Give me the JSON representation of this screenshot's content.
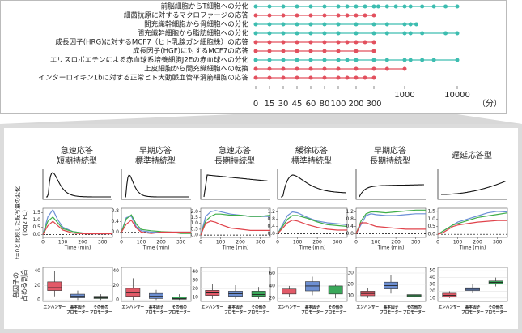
{
  "chart_data": [
    {
      "type": "dot-timeline",
      "xlabel": "（分）",
      "xticks": [
        0,
        15,
        30,
        45,
        60,
        80,
        100,
        200,
        300,
        1000,
        10000
      ],
      "series": [
        {
          "name": "前脳細胞からT細胞への分化",
          "color": "#3dbdb0",
          "values": [
            0,
            15,
            30,
            45,
            60,
            80,
            100,
            150,
            200,
            250,
            300,
            400,
            600,
            800,
            1000,
            2000,
            4000,
            6000,
            8000,
            10000
          ]
        },
        {
          "name": "細菌抗原に対するマクロファージの応答",
          "color": "#e2505e",
          "values": [
            0,
            15,
            30,
            45,
            60,
            80,
            100,
            150,
            200,
            250,
            300
          ]
        },
        {
          "name": "間充織幹細胞から骨細胞への分化",
          "color": "#3dbdb0",
          "values": [
            0,
            15,
            30,
            45,
            60,
            80,
            100,
            200,
            300,
            600,
            1000,
            2000,
            3000
          ]
        },
        {
          "name": "間充織幹細胞から脂肪細胞への分化",
          "color": "#3dbdb0",
          "values": [
            0,
            15,
            30,
            45,
            60,
            80,
            100,
            200,
            300,
            600,
            1000,
            2000,
            4000,
            8000,
            10000
          ]
        },
        {
          "name": "成長因子(HRG)に対するMCF7（ヒト乳腺ガン細胞株）の応答",
          "color": "#e2505e",
          "values": [
            0,
            15,
            30,
            45,
            60,
            80,
            100,
            150,
            200,
            250,
            300
          ]
        },
        {
          "name": "成長因子(HGF)に対するMCF7の応答",
          "color": "#e2505e",
          "values": [
            0,
            15,
            30,
            45,
            60,
            80,
            100,
            200,
            300
          ]
        },
        {
          "name": "エリスロポエチンによる赤血球系培養細胞J2Eの赤血球への分化",
          "color": "#3dbdb0",
          "values": [
            0,
            15,
            30,
            45,
            60,
            80,
            100,
            150,
            200,
            300,
            600,
            1000,
            2000,
            4000,
            6000,
            10000
          ]
        },
        {
          "name": "上皮細胞から間充織細胞への転換",
          "color": "#e2505e",
          "values": [
            0,
            15,
            30,
            45,
            60,
            80,
            100,
            200,
            300,
            600,
            1000
          ]
        },
        {
          "name": "インターロイキン1bに対する正常ヒト大動脈血管平滑筋細胞の応答",
          "color": "#e2505e",
          "values": [
            0,
            15,
            30,
            45,
            60,
            80,
            100,
            150,
            200,
            250,
            300
          ]
        }
      ]
    },
    {
      "type": "line",
      "title": [
        "急速応答",
        "短期持続型"
      ],
      "ylabel": [
        "t=0と比較した転写量の変化",
        "(log2 FC)"
      ],
      "xlabel": "Time (min)",
      "x": [
        0,
        25,
        50,
        75,
        100,
        150,
        200,
        250,
        300,
        350
      ],
      "xlim": [
        0,
        350
      ],
      "xticks": [
        0,
        100,
        200,
        300
      ],
      "ylim": [
        -0.2,
        1.8
      ],
      "yticks": [
        {
          "value": 0,
          "label": "0.0"
        },
        0.5,
        {
          "value": 1,
          "label": "1.0"
        },
        1.5
      ],
      "series": [
        {
          "color": "#6b8fd6",
          "values": [
            0,
            1.2,
            1.7,
            1.0,
            0.5,
            0.2,
            0.1,
            0.05,
            0.05,
            0.05
          ]
        },
        {
          "color": "#3fae49",
          "values": [
            0,
            0.9,
            1.2,
            0.8,
            0.4,
            0.2,
            0.1,
            0.1,
            0.1,
            0.1
          ]
        },
        {
          "color": "#e0434b",
          "values": [
            0,
            0.6,
            0.9,
            0.6,
            0.3,
            0.1,
            0.05,
            0.05,
            0.05,
            0.05
          ]
        }
      ]
    },
    {
      "type": "line",
      "title": [
        "早期応答",
        "標準持続型"
      ],
      "xlabel": "Time (min)",
      "x": [
        0,
        25,
        50,
        75,
        100,
        150,
        200,
        250,
        300,
        350
      ],
      "xlim": [
        0,
        350
      ],
      "xticks": [
        0,
        100,
        200,
        300
      ],
      "ylim": [
        -0.2,
        0.9
      ],
      "yticks": [
        {
          "value": 0,
          "label": "0.0"
        },
        0.4,
        0.8
      ],
      "series": [
        {
          "color": "#6b8fd6",
          "values": [
            0,
            0.55,
            0.6,
            0.2,
            0.05,
            0,
            0,
            0,
            0,
            0
          ]
        },
        {
          "color": "#3fae49",
          "values": [
            0,
            0.5,
            0.65,
            0.3,
            0.1,
            0.05,
            0.02,
            0,
            -0.05,
            -0.05
          ]
        },
        {
          "color": "#e0434b",
          "values": [
            0,
            0.3,
            0.45,
            0.15,
            0,
            -0.05,
            0,
            0,
            0,
            0
          ]
        }
      ]
    },
    {
      "type": "line",
      "title": [
        "急速応答",
        "長期持続型"
      ],
      "xlabel": "Time (min)",
      "x": [
        0,
        25,
        50,
        75,
        100,
        150,
        200,
        250,
        300,
        350
      ],
      "xlim": [
        0,
        350
      ],
      "xticks": [
        0,
        100,
        200,
        300
      ],
      "ylim": [
        -0.2,
        2.3
      ],
      "yticks": [
        {
          "value": 0,
          "label": "0.0"
        },
        0.5,
        {
          "value": 1,
          "label": "1.0"
        },
        1.5,
        {
          "value": 2,
          "label": "2.0"
        }
      ],
      "series": [
        {
          "color": "#6b8fd6",
          "values": [
            0,
            1.6,
            2.0,
            2.1,
            2.0,
            1.8,
            1.7,
            1.6,
            1.6,
            1.6
          ]
        },
        {
          "color": "#3fae49",
          "values": [
            0,
            1.2,
            1.6,
            1.8,
            1.8,
            1.7,
            1.7,
            1.6,
            1.6,
            1.7
          ]
        },
        {
          "color": "#e0434b",
          "values": [
            0,
            1.0,
            1.2,
            1.1,
            0.9,
            0.6,
            0.5,
            0.4,
            0.4,
            0.4
          ]
        }
      ]
    },
    {
      "type": "line",
      "title": [
        "緩徐応答",
        "標準持続型"
      ],
      "xlabel": "Time (min)",
      "x": [
        0,
        25,
        50,
        75,
        100,
        150,
        200,
        250,
        300,
        350
      ],
      "xlim": [
        0,
        350
      ],
      "xticks": [
        0,
        100,
        200,
        300
      ],
      "ylim": [
        -0.2,
        1.4
      ],
      "yticks": [
        {
          "value": 0,
          "label": "0.0"
        },
        0.4,
        0.8,
        1.2
      ],
      "series": [
        {
          "color": "#6b8fd6",
          "values": [
            0,
            0.5,
            1.0,
            1.2,
            1.15,
            0.9,
            0.7,
            0.6,
            0.55,
            0.5
          ]
        },
        {
          "color": "#3fae49",
          "values": [
            0,
            0.4,
            0.8,
            1.0,
            1.0,
            0.85,
            0.65,
            0.5,
            0.45,
            0.4
          ]
        },
        {
          "color": "#e0434b",
          "values": [
            0,
            0.3,
            0.6,
            0.75,
            0.7,
            0.5,
            0.35,
            0.25,
            0.2,
            0.2
          ]
        }
      ]
    },
    {
      "type": "line",
      "title": [
        "早期応答",
        "長期持続型"
      ],
      "xlabel": "Time (min)",
      "x": [
        0,
        25,
        50,
        75,
        100,
        150,
        200,
        250,
        300,
        350
      ],
      "xlim": [
        0,
        350
      ],
      "xticks": [
        0,
        100,
        200,
        300
      ],
      "ylim": [
        -0.2,
        1.4
      ],
      "yticks": [
        {
          "value": 0,
          "label": "0.0"
        },
        0.4,
        0.8,
        1.2
      ],
      "series": [
        {
          "color": "#6b8fd6",
          "values": [
            0,
            0.5,
            1.0,
            1.1,
            1.05,
            1.0,
            1.0,
            1.05,
            1.1,
            1.1
          ]
        },
        {
          "color": "#3fae49",
          "values": [
            0,
            0.7,
            1.1,
            1.2,
            1.2,
            1.15,
            1.2,
            1.25,
            1.3,
            1.3
          ]
        },
        {
          "color": "#e0434b",
          "values": [
            0,
            0.6,
            0.6,
            0.5,
            0.4,
            0.35,
            0.3,
            0.25,
            0.25,
            0.25
          ]
        }
      ]
    },
    {
      "type": "line",
      "title": [
        "遅延応答型"
      ],
      "xlabel": "Time (min)",
      "x": [
        0,
        25,
        50,
        75,
        100,
        150,
        200,
        250,
        300,
        350
      ],
      "xlim": [
        0,
        350
      ],
      "xticks": [
        0,
        100,
        200,
        300
      ],
      "ylim": [
        -0.2,
        1.7
      ],
      "yticks": [
        {
          "value": 0,
          "label": "0.0"
        },
        0.5,
        {
          "value": 1,
          "label": "1.0"
        },
        1.5
      ],
      "series": [
        {
          "color": "#6b8fd6",
          "values": [
            0,
            0.2,
            0.4,
            0.6,
            0.8,
            1.0,
            1.2,
            1.4,
            1.5,
            1.45
          ]
        },
        {
          "color": "#3fae49",
          "values": [
            0,
            0.2,
            0.4,
            0.6,
            0.7,
            0.9,
            1.1,
            1.2,
            1.3,
            1.4
          ]
        },
        {
          "color": "#e0434b",
          "values": [
            0,
            0.1,
            0.3,
            0.5,
            0.6,
            0.7,
            0.8,
            0.85,
            0.9,
            0.9
          ]
        }
      ]
    },
    {
      "type": "box",
      "ylabel": [
        "各因子の",
        "占める割合"
      ],
      "categories": [
        [
          "エンハンサー"
        ],
        [
          "基本因子",
          "プロモーター"
        ],
        [
          "その他の",
          "プロモーター"
        ]
      ],
      "colors": [
        "#e25a68",
        "#6d8fd2",
        "#3aa85a"
      ],
      "ylim": [
        -2,
        45
      ],
      "yticks": [
        0,
        20,
        40
      ],
      "values": [
        [
          5,
          13,
          17,
          25,
          40
        ],
        [
          0,
          3,
          5,
          8,
          13
        ],
        [
          0,
          2,
          3,
          5,
          8
        ]
      ]
    },
    {
      "type": "box",
      "categories": [
        [
          "エンハンサー"
        ],
        [
          "基本因子",
          "プロモーター"
        ],
        [
          "その他の",
          "プロモーター"
        ]
      ],
      "colors": [
        "#e25a68",
        "#6d8fd2",
        "#3aa85a"
      ],
      "ylim": [
        -2,
        45
      ],
      "yticks": [
        0,
        20,
        40
      ],
      "values": [
        [
          0,
          5,
          10,
          16,
          30
        ],
        [
          0,
          2,
          5,
          9,
          14
        ],
        [
          0,
          1,
          2,
          4,
          8
        ]
      ]
    },
    {
      "type": "box",
      "categories": [
        [
          "エンハンサー"
        ],
        [
          "基本因子",
          "プロモーター"
        ],
        [
          "その他の",
          "プロモーター"
        ]
      ],
      "colors": [
        "#e25a68",
        "#6d8fd2",
        "#3aa85a"
      ],
      "ylim": [
        5,
        45
      ],
      "yticks": [
        10,
        20,
        30,
        40
      ],
      "values": [
        [
          8,
          12,
          15,
          18,
          25
        ],
        [
          8,
          11,
          14,
          17,
          24
        ],
        [
          8,
          11,
          13,
          17,
          22
        ]
      ]
    },
    {
      "type": "box",
      "categories": [
        [
          "エンハンサー"
        ],
        [
          "基本因子",
          "プロモーター"
        ],
        [
          "その他の",
          "プロモーター"
        ]
      ],
      "colors": [
        "#e25a68",
        "#6d8fd2",
        "#3aa85a"
      ],
      "ylim": [
        15,
        70
      ],
      "yticks": [
        20,
        40,
        60
      ],
      "values": [
        [
          22,
          27,
          30,
          35,
          40
        ],
        [
          25,
          32,
          40,
          47,
          55
        ],
        [
          20,
          27,
          30,
          40,
          42
        ]
      ]
    },
    {
      "type": "box",
      "categories": [
        [
          "エンハンサー"
        ],
        [
          "基本因子",
          "プロモーター"
        ],
        [
          "その他の",
          "プロモーター"
        ]
      ],
      "colors": [
        "#e25a68",
        "#6d8fd2",
        "#3aa85a"
      ],
      "ylim": [
        5,
        35
      ],
      "yticks": [
        10,
        20,
        30
      ],
      "values": [
        [
          8,
          10,
          12,
          14,
          17
        ],
        [
          12,
          16,
          19,
          22,
          28
        ],
        [
          7,
          9,
          10,
          11,
          13
        ]
      ]
    },
    {
      "type": "box",
      "categories": [
        [
          "エンハンサー"
        ],
        [
          "基本因子",
          "プロモーター"
        ],
        [
          "その他の",
          "プロモーター"
        ]
      ],
      "colors": [
        "#e25a68",
        "#6d8fd2",
        "#3aa85a"
      ],
      "ylim": [
        5,
        55
      ],
      "yticks": [
        10,
        20,
        30,
        40,
        50
      ],
      "values": [
        [
          10,
          12,
          14,
          17,
          20
        ],
        [
          17,
          21,
          23,
          25,
          30
        ],
        [
          27,
          31,
          33,
          35,
          40
        ]
      ]
    }
  ]
}
